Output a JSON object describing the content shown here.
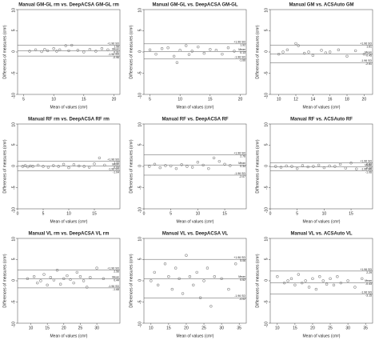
{
  "chart_data": [
    {
      "type": "scatter",
      "title": "Manual GM-GL rm vs. DeepACSA GM-GL rm",
      "xlabel": "Mean of values (cm²)",
      "ylabel": "Differences of measures (cm²)",
      "color": "#888888",
      "x": [
        6,
        7,
        8,
        8.5,
        9,
        10,
        10.5,
        11,
        12,
        12.5,
        13,
        14,
        15,
        16,
        17,
        18,
        19
      ],
      "values": [
        0.2,
        0.5,
        0.1,
        0.6,
        0.3,
        0.8,
        0.2,
        0.5,
        1.5,
        0.3,
        1.6,
        0.4,
        0,
        0.6,
        0.2,
        0.8,
        0.5
      ],
      "xlim": [
        4,
        21
      ],
      "xticks": [
        5,
        10,
        15,
        20
      ],
      "ylim": [
        -10,
        10
      ],
      "yticks": [
        -10,
        -5,
        0,
        5,
        10
      ],
      "ref_lines": [
        {
          "label": "+1.96 SD",
          "value": 1.58
        },
        {
          "label": "Mean",
          "value": 0.31
        },
        {
          "label": "-1.96 SD",
          "value": -0.96
        }
      ]
    },
    {
      "type": "scatter",
      "title": "Manual GM-GL vs. DeepACSA GM-GL",
      "xlabel": "Mean of values (cm²)",
      "ylabel": "Differences of measures (cm²)",
      "color": "#888888",
      "x": [
        5,
        6,
        7,
        8,
        9,
        9.5,
        10,
        11,
        11.5,
        12,
        13,
        14,
        15,
        16,
        17,
        18,
        19
      ],
      "values": [
        0.5,
        -0.5,
        0.8,
        1,
        -1,
        -2.5,
        0.4,
        1.5,
        -0.6,
        0.2,
        1.2,
        -0.3,
        0.6,
        0.4,
        -0.5,
        1,
        0.2
      ],
      "xlim": [
        4,
        21
      ],
      "xticks": [
        5,
        10,
        15,
        20
      ],
      "ylim": [
        -10,
        10
      ],
      "yticks": [
        -10,
        -5,
        0,
        5,
        10
      ],
      "ref_lines": [
        {
          "label": "+1.96 SD",
          "value": 1.92
        },
        {
          "label": "Mean",
          "value": 0.13
        },
        {
          "label": "-1.96 SD",
          "value": -1.66
        }
      ]
    },
    {
      "type": "scatter",
      "title": "Manual GM vs. ACSAuto GM",
      "xlabel": "Mean of values (cm²)",
      "ylabel": "Differences of measures (cm²)",
      "color": "#888888",
      "x": [
        10,
        10.5,
        11,
        12,
        12.3,
        13,
        13.5,
        14,
        15,
        15.5,
        16,
        17,
        18,
        19,
        20
      ],
      "values": [
        -0.5,
        0,
        0.5,
        2,
        1.5,
        -0.3,
        0,
        -0.8,
        0.4,
        -0.2,
        0,
        0.5,
        -1,
        0.3,
        -0.5
      ],
      "xlim": [
        9,
        21
      ],
      "xticks": [
        10,
        12,
        14,
        16,
        18,
        20
      ],
      "ylim": [
        -10,
        10
      ],
      "yticks": [
        -10,
        -5,
        0,
        5,
        10
      ],
      "ref_lines": [
        {
          "label": "+1.96 SD",
          "value": 1.61
        },
        {
          "label": "Mean",
          "value": -0.45
        },
        {
          "label": "-1.96 SD",
          "value": -2.51
        }
      ]
    },
    {
      "type": "scatter",
      "title": "Manual RF rm vs. DeepACSA RF rm",
      "xlabel": "Mean of values (cm²)",
      "ylabel": "Differences of measures (cm²)",
      "color": "#888888",
      "x": [
        1,
        1.5,
        2,
        2.5,
        3,
        4,
        5,
        6,
        7,
        8,
        9,
        10,
        11,
        12,
        13,
        14,
        15,
        16,
        17
      ],
      "values": [
        0,
        0.2,
        -0.1,
        0.1,
        0,
        0.3,
        0,
        -0.2,
        0.2,
        0,
        0.5,
        -0.3,
        0.4,
        0.1,
        0,
        -0.2,
        0.6,
        2,
        0.3
      ],
      "xlim": [
        0,
        20
      ],
      "xticks": [
        0,
        5,
        10,
        15
      ],
      "ylim": [
        -10,
        10
      ],
      "yticks": [
        -10,
        -5,
        0,
        5,
        10
      ],
      "ref_lines": [
        {
          "label": "+1.96 SD",
          "value": 1.22
        },
        {
          "label": "Mean",
          "value": 0.09
        },
        {
          "label": "-1.96 SD",
          "value": -1.04
        }
      ]
    },
    {
      "type": "scatter",
      "title": "Manual RF vs. DeepACSA RF",
      "xlabel": "Mean of values (cm²)",
      "ylabel": "Differences of measures (cm²)",
      "color": "#888888",
      "x": [
        1,
        2,
        3,
        4,
        5,
        6,
        7,
        8,
        9,
        10,
        11,
        12,
        13,
        14,
        15,
        16
      ],
      "values": [
        0,
        0.5,
        -0.3,
        0.2,
        0.1,
        -0.5,
        0.4,
        0,
        -0.2,
        1,
        0.3,
        -0.5,
        2,
        1.2,
        0.5,
        0.2
      ],
      "xlim": [
        0,
        19
      ],
      "xticks": [
        0,
        5,
        10,
        15
      ],
      "ylim": [
        -10,
        10
      ],
      "yticks": [
        -10,
        -5,
        0,
        5,
        10
      ],
      "ref_lines": [
        {
          "label": "+1.96 SD",
          "value": 2.76
        },
        {
          "label": "Mean",
          "value": 0.34
        },
        {
          "label": "-1.96 SD",
          "value": -2.07
        }
      ]
    },
    {
      "type": "scatter",
      "title": "Manual RF vs. ACSAuto RF",
      "xlabel": "Mean of values (cm²)",
      "ylabel": "Differences of measures (cm²)",
      "color": "#888888",
      "x": [
        1,
        2,
        3,
        4,
        5,
        6,
        7,
        8,
        9,
        10,
        11,
        12,
        13,
        14,
        15,
        16
      ],
      "values": [
        0,
        -0.2,
        0.1,
        0,
        -0.5,
        0.2,
        -0.1,
        0,
        0.3,
        -0.3,
        0.1,
        0,
        0.5,
        -0.4,
        0.8,
        -0.6
      ],
      "xlim": [
        0,
        19
      ],
      "xticks": [
        0,
        5,
        10,
        15
      ],
      "ylim": [
        -10,
        10
      ],
      "yticks": [
        -10,
        -5,
        0,
        5,
        10
      ],
      "ref_lines": [
        {
          "label": "+1.96 SD",
          "value": 0.82
        },
        {
          "label": "Mean",
          "value": -0.12
        },
        {
          "label": "-1.96 SD",
          "value": -1.06
        }
      ]
    },
    {
      "type": "scatter",
      "title": "Manual VL rm vs. DeepACSA VL rm",
      "xlabel": "Mean of values (cm²)",
      "ylabel": "Differences of measures (cm²)",
      "color": "#888888",
      "x": [
        9,
        11,
        12,
        13,
        14,
        15,
        16,
        17,
        18,
        19,
        20,
        21,
        22,
        23,
        24,
        25,
        26,
        27,
        28,
        30,
        32
      ],
      "values": [
        0.5,
        1,
        -0.5,
        0,
        1.5,
        -1,
        0.8,
        0.2,
        2.5,
        -0.8,
        0.5,
        1.2,
        0.3,
        -0.5,
        2,
        1,
        0,
        -1.5,
        0.8,
        3,
        0.5
      ],
      "xlim": [
        6,
        37
      ],
      "xticks": [
        10,
        15,
        20,
        25,
        30
      ],
      "ylim": [
        -10,
        10
      ],
      "yticks": [
        -10,
        -5,
        0,
        5,
        10
      ],
      "ref_lines": [
        {
          "label": "+1.96 SD",
          "value": 2.56
        },
        {
          "label": "Mean",
          "value": 0.44
        },
        {
          "label": "-1.96 SD",
          "value": -1.68
        }
      ]
    },
    {
      "type": "scatter",
      "title": "Manual VL vs. DeepACSA VL",
      "xlabel": "Mean of values (cm²)",
      "ylabel": "Differences of measures (cm²)",
      "color": "#888888",
      "x": [
        10,
        11,
        12,
        14,
        15,
        16,
        17,
        18,
        19,
        20,
        21,
        22,
        23,
        24,
        25,
        26,
        27,
        28,
        30,
        32,
        34
      ],
      "values": [
        0,
        2,
        -1,
        4,
        1,
        -2,
        3,
        0.5,
        -3,
        6,
        1,
        -1,
        2,
        -4,
        0,
        3,
        -6,
        1,
        0.5,
        -2,
        4
      ],
      "xlim": [
        8,
        37
      ],
      "xticks": [
        10,
        15,
        20,
        25,
        30,
        35
      ],
      "ylim": [
        -10,
        10
      ],
      "yticks": [
        -10,
        -5,
        0,
        5,
        10
      ],
      "ref_lines": [
        {
          "label": "+1.96 SD",
          "value": 5.06
        },
        {
          "label": "Mean",
          "value": 0.52
        },
        {
          "label": "-1.96 SD",
          "value": -4.02
        }
      ]
    },
    {
      "type": "scatter",
      "title": "Manual VL vs. ACSAuto VL",
      "xlabel": "Mean of values (cm²)",
      "ylabel": "Differences of measures (cm²)",
      "color": "#888888",
      "x": [
        10,
        12,
        13,
        14,
        15,
        16,
        17,
        18,
        19,
        20,
        21,
        22,
        23,
        24,
        25,
        26,
        27,
        28,
        30,
        32,
        34
      ],
      "values": [
        1,
        -0.5,
        0,
        0.5,
        -1,
        1.5,
        -0.5,
        0,
        -1.5,
        0.5,
        -2,
        1,
        0,
        -0.8,
        0.5,
        -1,
        1,
        -0.5,
        0,
        -1.5,
        0.5
      ],
      "xlim": [
        8,
        37
      ],
      "xticks": [
        10,
        15,
        20,
        25,
        30,
        35
      ],
      "ylim": [
        -10,
        10
      ],
      "yticks": [
        -10,
        -5,
        0,
        5,
        10
      ],
      "ref_lines": [
        {
          "label": "+1.96 SD",
          "value": 2.29
        },
        {
          "label": "Mean",
          "value": -0.43
        },
        {
          "label": "-1.96 SD",
          "value": -3.15
        }
      ]
    }
  ]
}
